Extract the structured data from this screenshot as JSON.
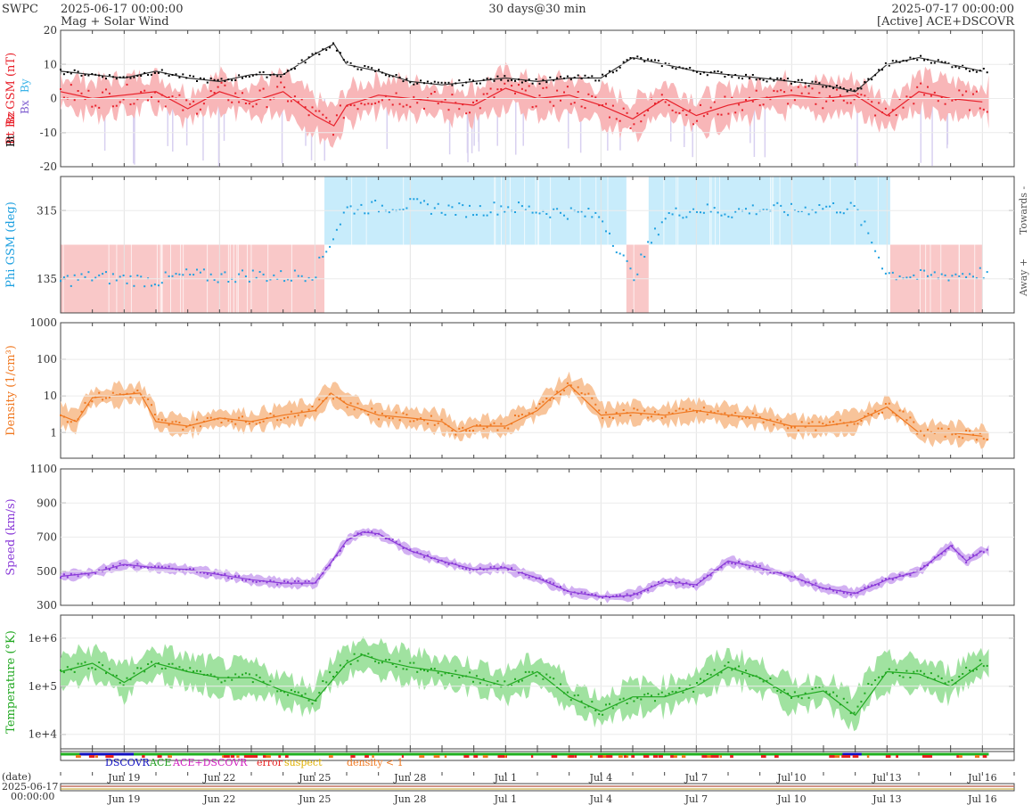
{
  "header": {
    "org": "SWPC",
    "start": "2025-06-17 00:00:00",
    "subtitle": "Mag + Solar Wind",
    "span": "30 days@30 min",
    "end": "2025-07-17 00:00:00",
    "source": "[Active] ACE+DSCOVR"
  },
  "legend": {
    "dscovr": "DSCOVR",
    "ace": "ACE",
    "ace_dscovr": "ACE+DSCOVR",
    "error": "error",
    "suspect": "suspect",
    "density": "density < 1"
  },
  "date_block": {
    "label": "(date)",
    "date": "2025-06-17",
    "time": "00:00:00"
  },
  "colors": {
    "bt": "#000000",
    "bz": "#e8202a",
    "bz_band": "#f8b6b8",
    "by": "#3cb4e8",
    "bx": "#8060d0",
    "phi": "#1ea0e0",
    "towards": "#c8ecfb",
    "away": "#f9c8c8",
    "density": "#f07820",
    "density_band": "#f8c49a",
    "speed": "#8a3ad8",
    "speed_band": "#d2b0f2",
    "temp": "#20a820",
    "temp_band": "#a0e2a0"
  },
  "chart_data": [
    {
      "id": "mag",
      "type": "line",
      "ylabel": "Bt  Bz GSM (nT)",
      "ylim": [
        -20,
        20
      ],
      "yticks": [
        -20,
        -10,
        0,
        10,
        20
      ],
      "legend_entries": [
        "Bt",
        "Bz",
        "By",
        "Bx"
      ],
      "series": [
        {
          "name": "Bt",
          "x": [
            0,
            1,
            2,
            3,
            4,
            5,
            6,
            7,
            8,
            8.6,
            9,
            10,
            11,
            12,
            13,
            14,
            15,
            16,
            17,
            18,
            19,
            20,
            21,
            22,
            23,
            24,
            25,
            26,
            27,
            28,
            29
          ],
          "values": [
            8,
            7,
            6,
            8,
            6,
            5,
            7,
            7,
            13,
            16,
            10,
            8,
            5,
            4,
            5,
            6,
            5,
            6,
            6,
            12,
            10,
            8,
            7,
            6,
            5,
            4,
            2,
            10,
            12,
            10,
            8
          ]
        },
        {
          "name": "Bz",
          "x": [
            0,
            1,
            2,
            3,
            4,
            5,
            6,
            7,
            8,
            8.6,
            9,
            10,
            11,
            12,
            13,
            14,
            15,
            16,
            17,
            18,
            19,
            20,
            21,
            22,
            23,
            24,
            25,
            26,
            27,
            28,
            29
          ],
          "values": [
            2,
            0,
            1,
            2,
            -3,
            2,
            -1,
            2,
            -5,
            -8,
            -2,
            1,
            0,
            -1,
            -2,
            3,
            0,
            1,
            -2,
            -6,
            0,
            -5,
            -2,
            0,
            1,
            0,
            1,
            -5,
            2,
            0,
            -1
          ]
        }
      ]
    },
    {
      "id": "phi",
      "type": "scatter",
      "ylabel": "Phi GSM (deg)",
      "ylim": [
        45,
        405
      ],
      "yticks": [
        135,
        315
      ],
      "sector_labels": [
        "Towards -",
        "Away +"
      ],
      "sectors": [
        {
          "from": 0,
          "to": 8.3,
          "sector": "away"
        },
        {
          "from": 8.3,
          "to": 17.8,
          "sector": "towards"
        },
        {
          "from": 17.8,
          "to": 18.5,
          "sector": "away"
        },
        {
          "from": 18.5,
          "to": 26.1,
          "sector": "towards"
        },
        {
          "from": 26.1,
          "to": 29,
          "sector": "away"
        }
      ],
      "x": [
        0,
        1,
        2,
        3,
        4,
        5,
        6,
        7,
        8,
        9,
        10,
        11,
        12,
        13,
        14,
        15,
        16,
        17,
        18,
        19,
        20,
        21,
        22,
        23,
        24,
        25,
        26,
        27,
        28,
        29
      ],
      "values": [
        130,
        140,
        135,
        130,
        145,
        140,
        145,
        140,
        150,
        320,
        325,
        330,
        320,
        315,
        325,
        315,
        310,
        300,
        140,
        300,
        320,
        310,
        320,
        315,
        325,
        320,
        150,
        140,
        145,
        150
      ]
    },
    {
      "id": "density",
      "type": "line",
      "ylabel": "Density (1/cm³)",
      "scale": "log",
      "ylim": [
        0.2,
        1000
      ],
      "yticks": [
        1,
        10,
        100,
        1000
      ],
      "x": [
        0,
        0.5,
        1,
        1.5,
        2,
        2.5,
        3,
        4,
        5,
        6,
        7,
        8,
        8.5,
        9,
        10,
        11,
        12,
        12.5,
        13,
        14,
        15,
        15.5,
        16,
        17,
        18,
        19,
        20,
        21,
        22,
        23,
        24,
        25,
        26,
        27,
        28,
        29
      ],
      "values": [
        3,
        2,
        9,
        10,
        11,
        12,
        2,
        1.5,
        2.5,
        2,
        3,
        4,
        12,
        6,
        3,
        2.5,
        2,
        1,
        1.5,
        1.5,
        4,
        10,
        20,
        3,
        3.5,
        3,
        4,
        3,
        2.5,
        1.5,
        1.5,
        2,
        5,
        1,
        1,
        0.8
      ]
    },
    {
      "id": "speed",
      "type": "line",
      "ylabel": "Speed (km/s)",
      "ylim": [
        300,
        1100
      ],
      "yticks": [
        300,
        500,
        700,
        900,
        1100
      ],
      "x": [
        0,
        1,
        2,
        3,
        4,
        5,
        6,
        7,
        8,
        8.5,
        9,
        9.5,
        10,
        11,
        12,
        13,
        14,
        15,
        16,
        17,
        17.5,
        18,
        19,
        20,
        21,
        22,
        23,
        24,
        25,
        26,
        27,
        28,
        28.5,
        29
      ],
      "values": [
        470,
        490,
        540,
        520,
        510,
        480,
        450,
        430,
        430,
        550,
        680,
        730,
        720,
        620,
        560,
        510,
        520,
        460,
        380,
        350,
        350,
        360,
        440,
        420,
        560,
        520,
        470,
        400,
        370,
        450,
        500,
        650,
        560,
        620
      ]
    },
    {
      "id": "temperature",
      "type": "line",
      "ylabel": "Temperature (°K)",
      "scale": "log",
      "ylim": [
        5000,
        3000000
      ],
      "yticks": [
        10000,
        100000,
        1000000
      ],
      "ytick_labels": [
        "1e+4",
        "1e+5",
        "1e+6"
      ],
      "x": [
        0,
        1,
        2,
        3,
        4,
        5,
        6,
        7,
        8,
        9,
        9.5,
        10,
        11,
        12,
        13,
        14,
        15,
        16,
        17,
        18,
        19,
        20,
        21,
        22,
        23,
        24,
        25,
        26,
        27,
        28,
        29
      ],
      "values": [
        200000,
        300000,
        120000,
        300000,
        200000,
        150000,
        150000,
        80000,
        50000,
        300000,
        450000,
        350000,
        250000,
        200000,
        150000,
        100000,
        200000,
        60000,
        30000,
        60000,
        60000,
        100000,
        250000,
        150000,
        60000,
        80000,
        25000,
        200000,
        180000,
        100000,
        300000
      ]
    }
  ],
  "x_axis": {
    "days": 30,
    "tick_days": [
      2,
      5,
      8,
      11,
      14,
      17,
      20,
      23,
      26,
      29
    ],
    "labels": [
      "Jun 19",
      "Jun 22",
      "Jun 25",
      "Jun 28",
      "Jul 1",
      "Jul 4",
      "Jul 7",
      "Jul 10",
      "Jul 13",
      "Jul 16"
    ]
  }
}
